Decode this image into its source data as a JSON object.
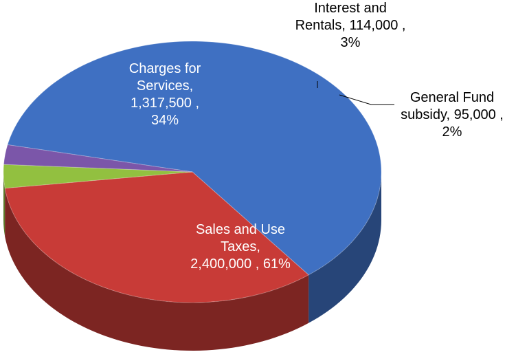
{
  "chart_data": {
    "type": "pie",
    "categories": [
      "Sales and Use Taxes,",
      "Charges for Services,",
      "Interest and Rentals,",
      "General Fund subsidy,"
    ],
    "values": [
      2400000,
      1317500,
      114000,
      95000
    ],
    "value_labels": [
      "2,400,000 ,",
      "1,317,500 ,",
      "114,000 ,",
      "95,000 ,"
    ],
    "percent_labels": [
      "61%",
      "34%",
      "3%",
      "2%"
    ],
    "colors": [
      "#3f70c2",
      "#c83b37",
      "#92c040",
      "#7b56a9"
    ]
  }
}
